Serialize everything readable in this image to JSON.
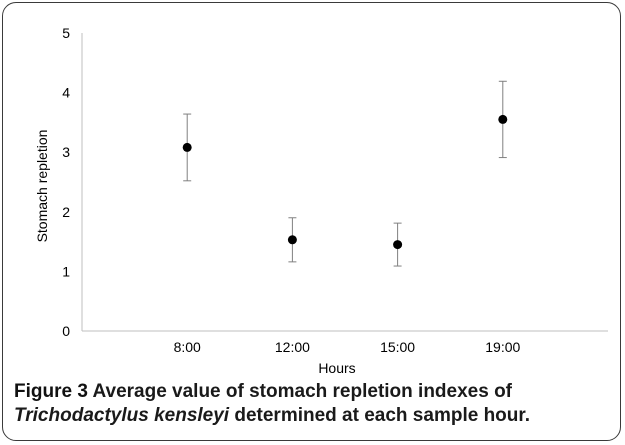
{
  "chart_data": {
    "type": "scatter",
    "categories": [
      "8:00",
      "12:00",
      "15:00",
      "19:00"
    ],
    "values": [
      3.08,
      1.53,
      1.45,
      3.55
    ],
    "error_low": [
      2.52,
      1.16,
      1.09,
      2.91
    ],
    "error_high": [
      3.64,
      1.9,
      1.81,
      4.19
    ],
    "xlabel": "Hours",
    "ylabel": "Stomach repletion",
    "ylim": [
      0,
      5
    ],
    "yticks": [
      "0",
      "1",
      "2",
      "3",
      "4",
      "5"
    ],
    "grid": false,
    "legend": "none",
    "marker_color": "#000000",
    "errorbar_color": "#808080",
    "axis_color": "#bfbfbf"
  },
  "caption": {
    "label": "Figure 3",
    "text_before": " Average value of stomach repletion indexes of ",
    "species": "Trichodactylus kensleyi",
    "text_after": " determined at each sample hour."
  }
}
